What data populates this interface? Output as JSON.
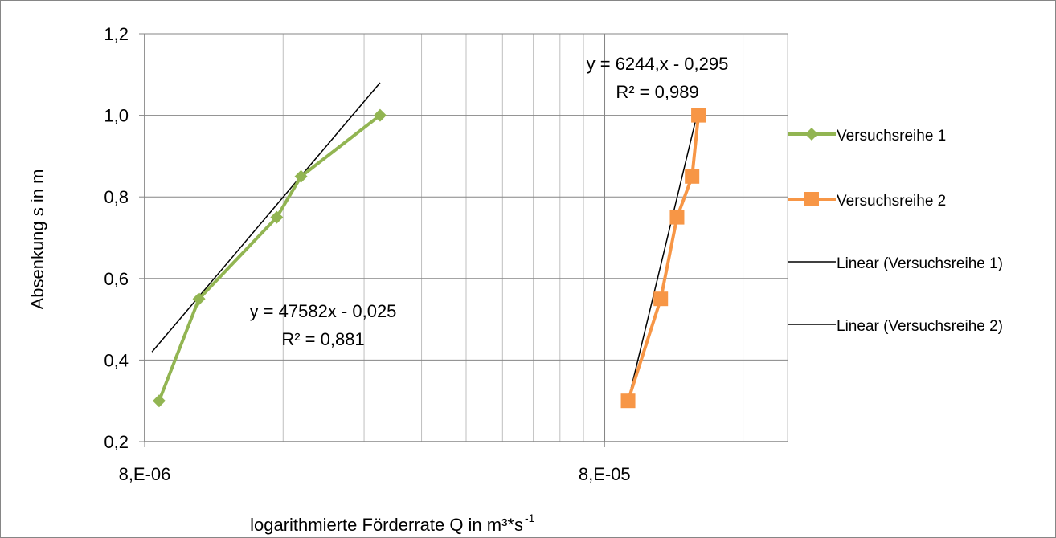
{
  "chart_data": {
    "type": "scatter",
    "title": "",
    "xlabel": "logarithmierte Förderrate Q in m³*s",
    "xlabel_sup": "-1",
    "ylabel": "Absenkung s in m",
    "xscale": "log",
    "xlim": [
      8e-06,
      0.0002
    ],
    "ylim": [
      0.2,
      1.2
    ],
    "y_ticks": [
      0.2,
      0.4,
      0.6,
      0.8,
      1.0,
      1.2
    ],
    "y_tick_labels": [
      "0,2",
      "0,4",
      "0,6",
      "0,8",
      "1,0",
      "1,2"
    ],
    "x_ticks": [
      8e-06,
      8e-05
    ],
    "x_tick_labels": [
      "8,E-06",
      "8,E-05"
    ],
    "grid": true,
    "legend_position": "right",
    "series": [
      {
        "name": "Versuchsreihe 1",
        "color": "#92b552",
        "marker": "diamond",
        "x": [
          8.6e-06,
          1.05e-05,
          1.55e-05,
          1.75e-05,
          2.6e-05
        ],
        "y": [
          0.3,
          0.55,
          0.75,
          0.85,
          1.0
        ]
      },
      {
        "name": "Versuchsreihe 2",
        "color": "#f79646",
        "marker": "square",
        "x": [
          9e-05,
          0.000106,
          0.000115,
          0.000124,
          0.000128
        ],
        "y": [
          0.3,
          0.55,
          0.75,
          0.85,
          1.0
        ]
      }
    ],
    "trendlines": [
      {
        "name": "Linear (Versuchsreihe 1)",
        "color": "#000000",
        "x": [
          8.3e-06,
          2.6e-05
        ],
        "y": [
          0.42,
          1.08
        ],
        "equation": "y = 47582x - 0,025",
        "r2": "R² = 0,881"
      },
      {
        "name": "Linear (Versuchsreihe 2)",
        "color": "#000000",
        "x": [
          9e-05,
          0.000127
        ],
        "y": [
          0.3,
          1.0
        ],
        "equation": "y = 6244,x - 0,295",
        "r2": "R² = 0,989"
      }
    ]
  }
}
